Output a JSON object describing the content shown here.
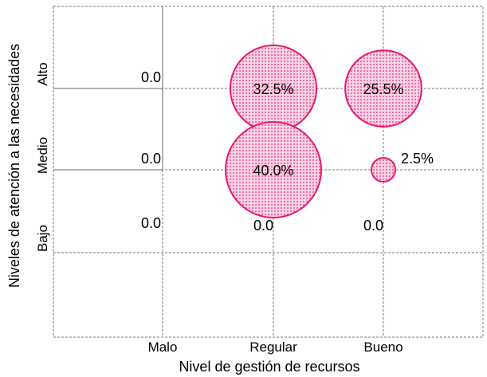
{
  "chart_data": {
    "type": "bubble",
    "title": "",
    "xlabel": "Nivel de gestión de recursos",
    "ylabel": "Niveles de atención  a las necesidades",
    "x_categories": [
      "Malo",
      "Regular",
      "Bueno"
    ],
    "y_categories": [
      "Bajo",
      "Medio",
      "Alto"
    ],
    "points": [
      {
        "x": "Malo",
        "y": "Alto",
        "value": 0.0,
        "label": "0.0"
      },
      {
        "x": "Malo",
        "y": "Medio",
        "value": 0.0,
        "label": "0.0"
      },
      {
        "x": "Malo",
        "y": "Bajo",
        "value": 0.0,
        "label": "0.0"
      },
      {
        "x": "Regular",
        "y": "Alto",
        "value": 32.5,
        "label": "32.5%"
      },
      {
        "x": "Regular",
        "y": "Medio",
        "value": 40.0,
        "label": "40.0%"
      },
      {
        "x": "Regular",
        "y": "Bajo",
        "value": 0.0,
        "label": "0.0"
      },
      {
        "x": "Bueno",
        "y": "Alto",
        "value": 25.5,
        "label": "25.5%"
      },
      {
        "x": "Bueno",
        "y": "Medio",
        "value": 2.5,
        "label": "2.5%"
      },
      {
        "x": "Bueno",
        "y": "Bajo",
        "value": 0.0,
        "label": "0.0"
      }
    ],
    "grid": true,
    "colors": {
      "bubble_fill": "#f9c6de",
      "bubble_stroke": "#e8196f",
      "bubble_pattern": "#e8196f"
    }
  }
}
